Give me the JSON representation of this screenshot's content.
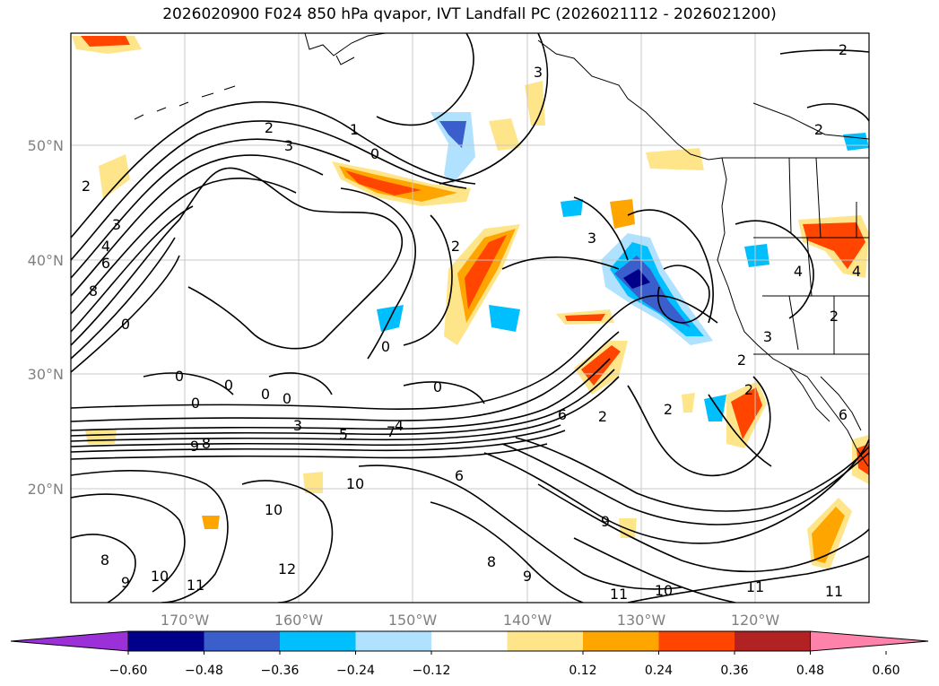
{
  "title": "2026020900 F024 850 hPa qvapor, IVT Landfall PC (2026021112 - 2026021200)",
  "lon_labels": [
    "170°W",
    "160°W",
    "150°W",
    "140°W",
    "130°W",
    "120°W"
  ],
  "lat_labels": [
    "50°N",
    "40°N",
    "30°N",
    "20°N"
  ],
  "contour_labels": [
    {
      "text": "2"
    },
    {
      "text": "3"
    },
    {
      "text": "1"
    },
    {
      "text": "0"
    },
    {
      "text": "2"
    },
    {
      "text": "3"
    },
    {
      "text": "4"
    },
    {
      "text": "6"
    },
    {
      "text": "8"
    },
    {
      "text": "3"
    },
    {
      "text": "0"
    },
    {
      "text": "0"
    },
    {
      "text": "0"
    },
    {
      "text": "0"
    },
    {
      "text": "0"
    },
    {
      "text": "0"
    },
    {
      "text": "0"
    },
    {
      "text": "3"
    },
    {
      "text": "2"
    },
    {
      "text": "8"
    },
    {
      "text": "9"
    },
    {
      "text": "7"
    },
    {
      "text": "5"
    },
    {
      "text": "3"
    },
    {
      "text": "4"
    },
    {
      "text": "6"
    },
    {
      "text": "6"
    },
    {
      "text": "2"
    },
    {
      "text": "2"
    },
    {
      "text": "2"
    },
    {
      "text": "2"
    },
    {
      "text": "4"
    },
    {
      "text": "4"
    },
    {
      "text": "2"
    },
    {
      "text": "0"
    },
    {
      "text": "10"
    },
    {
      "text": "10"
    },
    {
      "text": "12"
    },
    {
      "text": "8"
    },
    {
      "text": "9"
    },
    {
      "text": "10"
    },
    {
      "text": "11"
    },
    {
      "text": "9"
    },
    {
      "text": "8"
    },
    {
      "text": "9"
    },
    {
      "text": "11"
    },
    {
      "text": "10"
    },
    {
      "text": "11"
    },
    {
      "text": "11"
    },
    {
      "text": "3"
    },
    {
      "text": "6"
    },
    {
      "text": "2"
    },
    {
      "text": "2"
    }
  ],
  "colorbar": {
    "colors": [
      "#9b30d9",
      "#00008b",
      "#3a5fcd",
      "#00bfff",
      "#b0e2ff",
      "#ffffff",
      "#ffe58a",
      "#ffa500",
      "#ff4500",
      "#b22222",
      "#ff82ab"
    ],
    "tick_labels": [
      "−0.60",
      "−0.48",
      "−0.36",
      "−0.24",
      "−0.12",
      "0.12",
      "0.24",
      "0.36",
      "0.48",
      "0.60"
    ]
  },
  "palette": {
    "pos1": "#ffe58a",
    "pos2": "#ffa500",
    "pos3": "#ff4500",
    "neg1": "#b0e2ff",
    "neg2": "#00bfff",
    "neg3": "#3a5fcd",
    "neg4": "#00008b"
  }
}
